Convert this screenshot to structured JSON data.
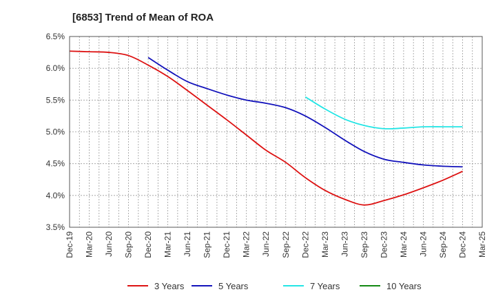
{
  "chart_data": {
    "type": "line",
    "title": "[6853]  Trend of Mean of ROA",
    "xlabel": "",
    "ylabel": "",
    "categories": [
      "Dec-19",
      "Mar-20",
      "Jun-20",
      "Sep-20",
      "Dec-20",
      "Mar-21",
      "Jun-21",
      "Sep-21",
      "Dec-21",
      "Mar-22",
      "Jun-22",
      "Sep-22",
      "Dec-22",
      "Mar-23",
      "Jun-23",
      "Sep-23",
      "Dec-23",
      "Mar-24",
      "Jun-24",
      "Sep-24",
      "Dec-24",
      "Mar-25"
    ],
    "y_ticks": [
      "6.5%",
      "6.0%",
      "5.5%",
      "5.0%",
      "4.5%",
      "4.0%",
      "3.5%"
    ],
    "ylim": [
      3.5,
      6.5
    ],
    "grid": true,
    "legend_position": "bottom",
    "series": [
      {
        "name": "3 Years",
        "color": "#dd1111",
        "values": [
          6.27,
          6.26,
          6.25,
          6.2,
          6.05,
          5.87,
          5.65,
          5.42,
          5.19,
          4.95,
          4.71,
          4.52,
          4.28,
          4.08,
          3.94,
          3.85,
          3.92,
          4.01,
          4.12,
          4.24,
          4.38,
          null
        ]
      },
      {
        "name": "5 Years",
        "color": "#1111bb",
        "values": [
          null,
          null,
          null,
          null,
          6.17,
          5.97,
          5.79,
          5.68,
          5.58,
          5.5,
          5.45,
          5.38,
          5.25,
          5.07,
          4.87,
          4.69,
          4.57,
          4.52,
          4.48,
          4.46,
          4.45,
          null
        ]
      },
      {
        "name": "7 Years",
        "color": "#22e5e5",
        "values": [
          null,
          null,
          null,
          null,
          null,
          null,
          null,
          null,
          null,
          null,
          null,
          null,
          5.55,
          5.36,
          5.2,
          5.1,
          5.05,
          5.06,
          5.08,
          5.08,
          5.08,
          null
        ]
      },
      {
        "name": "10 Years",
        "color": "#118811",
        "values": [
          null,
          null,
          null,
          null,
          null,
          null,
          null,
          null,
          null,
          null,
          null,
          null,
          null,
          null,
          null,
          null,
          null,
          null,
          null,
          null,
          null,
          null
        ]
      }
    ]
  }
}
